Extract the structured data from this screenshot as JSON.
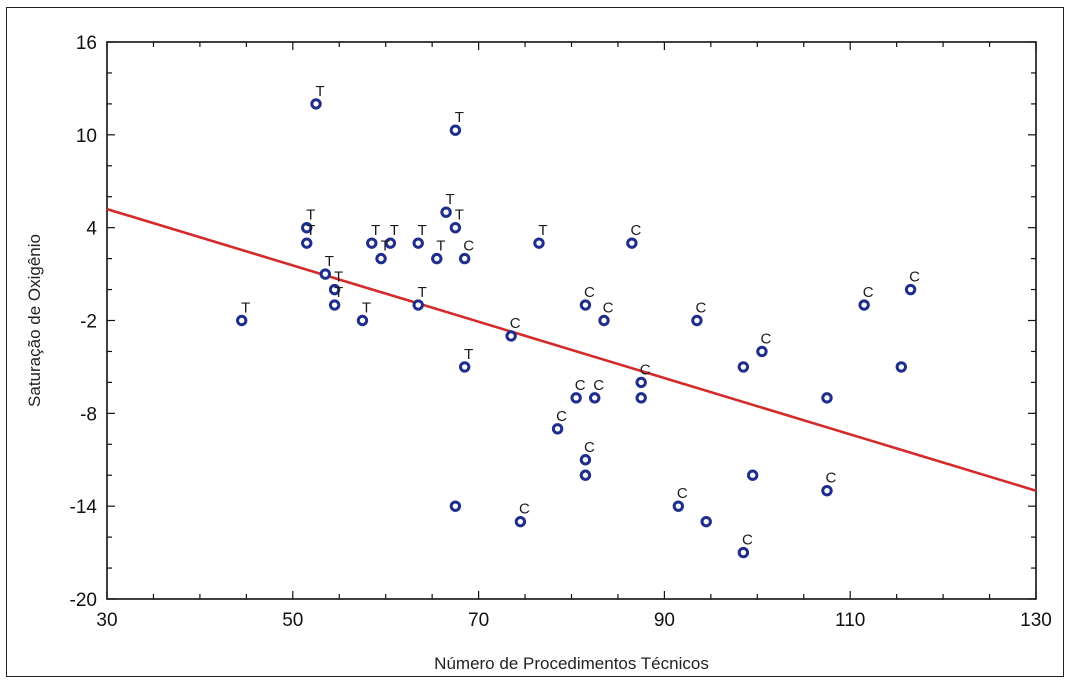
{
  "chart_data": {
    "type": "scatter",
    "xlabel": "Número de Procedimentos Técnicos",
    "ylabel": "Saturação de Oxigênio",
    "xlim": [
      30,
      130
    ],
    "ylim": [
      -20,
      16
    ],
    "xticks": [
      "30",
      "50",
      "70",
      "90",
      "110",
      "130"
    ],
    "yticks": [
      "16",
      "10",
      "4",
      "-2",
      "-8",
      "-14",
      "-20"
    ],
    "grid": false,
    "colors": {
      "points": "#1f2d8c",
      "trend": "#d42a2a",
      "axis": "#111111"
    },
    "trendline": {
      "x": [
        30,
        130
      ],
      "y": [
        5.2,
        -13.0
      ]
    },
    "points": [
      {
        "x": 52.5,
        "y": 12.0,
        "label": "T"
      },
      {
        "x": 67.5,
        "y": 10.3,
        "label": "T"
      },
      {
        "x": 51.5,
        "y": 4.0,
        "label": "T"
      },
      {
        "x": 51.5,
        "y": 3.0,
        "label": "T"
      },
      {
        "x": 66.5,
        "y": 5.0,
        "label": "T"
      },
      {
        "x": 67.5,
        "y": 4.0,
        "label": "T"
      },
      {
        "x": 58.5,
        "y": 3.0,
        "label": "T"
      },
      {
        "x": 60.5,
        "y": 3.0,
        "label": "T"
      },
      {
        "x": 63.5,
        "y": 3.0,
        "label": "T"
      },
      {
        "x": 59.5,
        "y": 2.0,
        "label": "T"
      },
      {
        "x": 65.5,
        "y": 2.0,
        "label": "T"
      },
      {
        "x": 68.5,
        "y": 2.0,
        "label": "C"
      },
      {
        "x": 76.5,
        "y": 3.0,
        "label": "T"
      },
      {
        "x": 86.5,
        "y": 3.0,
        "label": "C"
      },
      {
        "x": 53.5,
        "y": 1.0,
        "label": "T"
      },
      {
        "x": 54.5,
        "y": 0.0,
        "label": "T"
      },
      {
        "x": 54.5,
        "y": -1.0,
        "label": "T"
      },
      {
        "x": 63.5,
        "y": -1.0,
        "label": "T"
      },
      {
        "x": 44.5,
        "y": -2.0,
        "label": "T"
      },
      {
        "x": 57.5,
        "y": -2.0,
        "label": "T"
      },
      {
        "x": 68.5,
        "y": -5.0,
        "label": "T"
      },
      {
        "x": 67.5,
        "y": -14.0,
        "label": ""
      },
      {
        "x": 73.5,
        "y": -3.0,
        "label": "C"
      },
      {
        "x": 74.5,
        "y": -15.0,
        "label": "C"
      },
      {
        "x": 78.5,
        "y": -9.0,
        "label": "C"
      },
      {
        "x": 80.5,
        "y": -7.0,
        "label": "C"
      },
      {
        "x": 81.5,
        "y": -1.0,
        "label": "C"
      },
      {
        "x": 81.5,
        "y": -11.0,
        "label": "C"
      },
      {
        "x": 81.5,
        "y": -12.0,
        "label": ""
      },
      {
        "x": 82.5,
        "y": -7.0,
        "label": "C"
      },
      {
        "x": 83.5,
        "y": -2.0,
        "label": "C"
      },
      {
        "x": 87.5,
        "y": -6.0,
        "label": "C"
      },
      {
        "x": 87.5,
        "y": -7.0,
        "label": ""
      },
      {
        "x": 91.5,
        "y": -14.0,
        "label": "C"
      },
      {
        "x": 93.5,
        "y": -2.0,
        "label": "C"
      },
      {
        "x": 94.5,
        "y": -15.0,
        "label": ""
      },
      {
        "x": 98.5,
        "y": -5.0,
        "label": ""
      },
      {
        "x": 98.5,
        "y": -17.0,
        "label": "C"
      },
      {
        "x": 99.5,
        "y": -12.0,
        "label": ""
      },
      {
        "x": 100.5,
        "y": -4.0,
        "label": "C"
      },
      {
        "x": 107.5,
        "y": -7.0,
        "label": ""
      },
      {
        "x": 107.5,
        "y": -13.0,
        "label": "C"
      },
      {
        "x": 111.5,
        "y": -1.0,
        "label": "C"
      },
      {
        "x": 115.5,
        "y": -5.0,
        "label": ""
      },
      {
        "x": 116.5,
        "y": 0.0,
        "label": "C"
      }
    ]
  }
}
